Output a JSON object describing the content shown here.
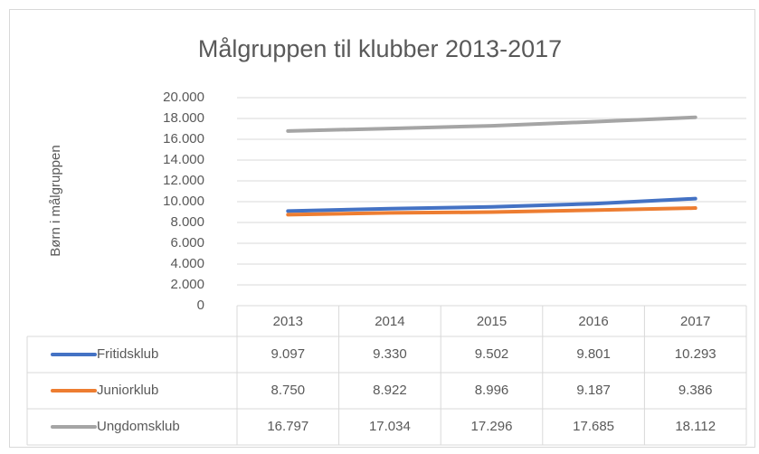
{
  "chart_data": {
    "type": "line",
    "title": "Målgruppen til klubber 2013-2017",
    "y_label": "Børn i målgruppen",
    "categories": [
      "2013",
      "2014",
      "2015",
      "2016",
      "2017"
    ],
    "series": [
      {
        "name": "Fritidsklub",
        "color": "#4472c4",
        "values": [
          9097,
          9330,
          9502,
          9801,
          10293
        ],
        "value_labels": [
          "9.097",
          "9.330",
          "9.502",
          "9.801",
          "10.293"
        ]
      },
      {
        "name": "Juniorklub",
        "color": "#ed7d31",
        "values": [
          8750,
          8922,
          8996,
          9187,
          9386
        ],
        "value_labels": [
          "8.750",
          "8.922",
          "8.996",
          "9.187",
          "9.386"
        ]
      },
      {
        "name": "Ungdomsklub",
        "color": "#a5a5a5",
        "values": [
          16797,
          17034,
          17296,
          17685,
          18112
        ],
        "value_labels": [
          "16.797",
          "17.034",
          "17.296",
          "17.685",
          "18.112"
        ]
      }
    ],
    "ylim": [
      0,
      20000
    ],
    "yticks": [
      0,
      {
        "value": 2000,
        "label": "2.000"
      },
      {
        "value": 4000,
        "label": "4.000"
      },
      {
        "value": 6000,
        "label": "6.000"
      },
      {
        "value": 8000,
        "label": "8.000"
      },
      {
        "value": 10000,
        "label": "10.000"
      },
      {
        "value": 12000,
        "label": "12.000"
      },
      {
        "value": 14000,
        "label": "14.000"
      },
      {
        "value": 16000,
        "label": "16.000"
      },
      {
        "value": 18000,
        "label": "18.000"
      },
      {
        "value": 20000,
        "label": "20.000"
      }
    ],
    "grid": true
  }
}
